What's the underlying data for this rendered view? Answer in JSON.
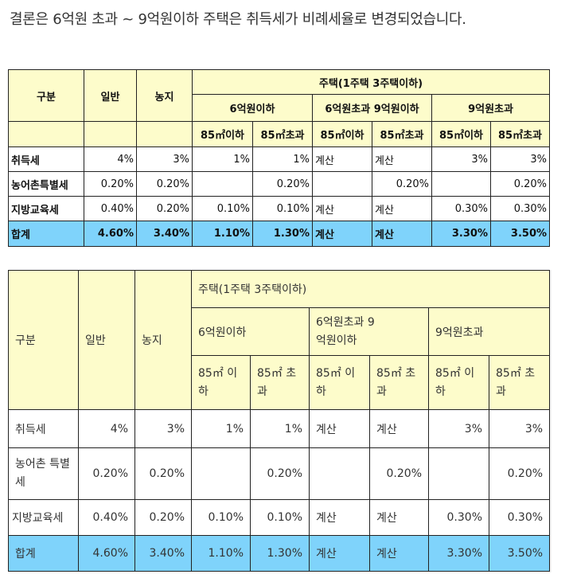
{
  "intro": "결론은 6억원 초과 ~ 9억원이하 주택은 취득세가 비례세율로 변경되었습니다.",
  "table1": {
    "header": {
      "category": "구분",
      "general": "일반",
      "farmland": "농지",
      "housing": "주택(1주택 3주택이하)",
      "band_a": "6억원이하",
      "band_b": "6억원초과 9억원이하",
      "band_c": "9억원초과",
      "area_under": "85㎡이하",
      "area_over": "85㎡초과"
    },
    "rows": [
      {
        "label": "취득세",
        "cells": [
          "4%",
          "3%",
          "1%",
          "1%",
          "계산",
          "계산",
          "3%",
          "3%"
        ]
      },
      {
        "label": "농어촌특별세",
        "cells": [
          "0.20%",
          "0.20%",
          "",
          "0.20%",
          "",
          "0.20%",
          "",
          "0.20%"
        ]
      },
      {
        "label": "지방교육세",
        "cells": [
          "0.40%",
          "0.20%",
          "0.10%",
          "0.10%",
          "계산",
          "계산",
          "0.30%",
          "0.30%"
        ]
      }
    ],
    "total": {
      "label": "합계",
      "cells": [
        "4.60%",
        "3.40%",
        "1.10%",
        "1.30%",
        "계산",
        "계산",
        "3.30%",
        "3.50%"
      ]
    }
  },
  "table2": {
    "header": {
      "category": "구분",
      "general": "일반",
      "farmland": "농지",
      "housing": "주택(1주택 3주택이하)",
      "band_a": "6억원이하",
      "band_b": "6억원초과 9억원이하",
      "band_c": "9억원초과",
      "area_under": "85㎡ 이하",
      "area_over": "85㎡ 초과"
    },
    "rows": [
      {
        "label": "취득세",
        "cells": [
          "4%",
          "3%",
          "1%",
          "1%",
          "계산",
          "계산",
          "3%",
          "3%"
        ]
      },
      {
        "label": "농어촌 특별세",
        "cells": [
          "0.20%",
          "0.20%",
          "",
          "0.20%",
          "",
          "0.20%",
          "",
          "0.20%"
        ]
      },
      {
        "label": "지방교육세",
        "cells": [
          "0.40%",
          "0.20%",
          "0.10%",
          "0.10%",
          "계산",
          "계산",
          "0.30%",
          "0.30%"
        ]
      }
    ],
    "total": {
      "label": "합계",
      "cells": [
        "4.60%",
        "3.40%",
        "1.10%",
        "1.30%",
        "계산",
        "계산",
        "3.30%",
        "3.50%"
      ]
    }
  },
  "colors": {
    "header_bg": "#fdfccb",
    "total_bg": "#7fd3fb",
    "border": "#222222"
  }
}
